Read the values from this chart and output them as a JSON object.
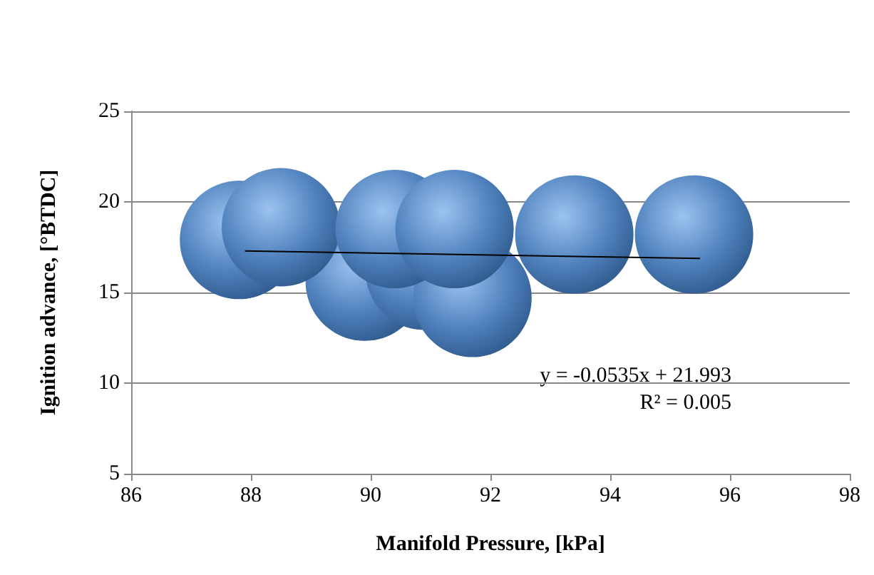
{
  "chart_data": {
    "type": "bubble",
    "xlabel": "Manifold Pressure, [kPa]",
    "ylabel": "Ignition advance, [°BTDC]",
    "xlim": [
      86,
      98
    ],
    "xticks": [
      86,
      88,
      90,
      92,
      94,
      96,
      98
    ],
    "ylim": [
      5,
      25
    ],
    "yticks": [
      5,
      10,
      15,
      20,
      25
    ],
    "grid": "y",
    "annotations": [
      "y = -0.0535x + 21.993",
      "R² = 0.005"
    ],
    "series": [
      {
        "color": "#4f81bd",
        "x": [
          89.9,
          90.9,
          91.7,
          87.8,
          88.5,
          90.4,
          91.4,
          93.4,
          95.4
        ],
        "values": [
          15.6,
          16.2,
          14.7,
          17.9,
          18.6,
          18.5,
          18.5,
          18.2,
          18.2
        ],
        "sizes": [
          1,
          1,
          1,
          1,
          1,
          1,
          1,
          1,
          1
        ]
      },
      {
        "type": "line",
        "color": "#000000",
        "x": [
          87.9,
          95.5
        ],
        "values": [
          17.29,
          16.88
        ],
        "marker": "none"
      }
    ]
  }
}
